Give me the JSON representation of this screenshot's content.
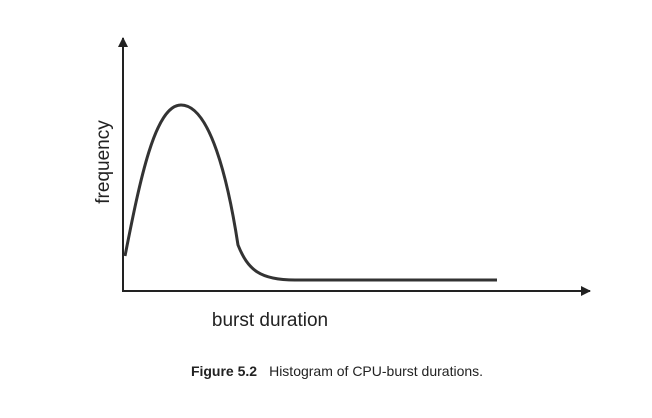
{
  "axes": {
    "y_label": "frequency",
    "x_label": "burst duration"
  },
  "caption": {
    "label": "Figure 5.2",
    "text": "Histogram of CPU-burst durations."
  }
}
